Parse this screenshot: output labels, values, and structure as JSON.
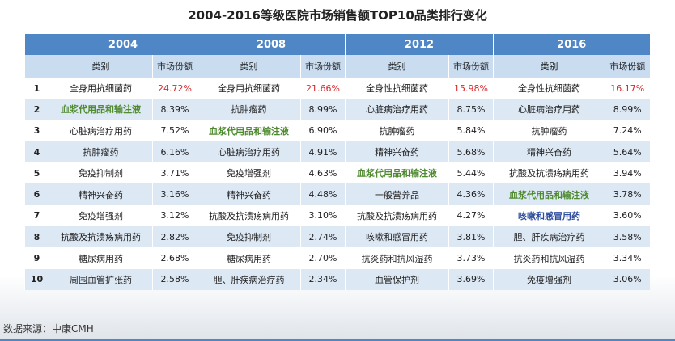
{
  "title": "2004-2016等级医院市场销售额TOP10品类排行变化",
  "source": "数据来源：中康CMH",
  "years": [
    "2004",
    "2008",
    "2012",
    "2016"
  ],
  "col_category": "类别",
  "col_share": "市场份额",
  "colors": {
    "header": "#4f86c6",
    "subheader": "#c9dcf0",
    "stripe": "#dde8f5",
    "highlight_red": "#d6262b",
    "highlight_green": "#4e8a2e",
    "highlight_blue": "#2e4d9e"
  },
  "rows": [
    {
      "rank": "1",
      "cells": [
        {
          "cat": "全身用抗细菌药",
          "share": "24.72%",
          "share_style": "red"
        },
        {
          "cat": "全身用抗细菌药",
          "share": "21.66%",
          "share_style": "red"
        },
        {
          "cat": "全身性抗细菌药",
          "share": "15.98%",
          "share_style": "red"
        },
        {
          "cat": "全身性抗细菌药",
          "share": "16.17%",
          "share_style": "red"
        }
      ]
    },
    {
      "rank": "2",
      "cells": [
        {
          "cat": "血浆代用品和输注液",
          "share": "8.39%",
          "cat_style": "green"
        },
        {
          "cat": "抗肿瘤药",
          "share": "8.99%"
        },
        {
          "cat": "心脏病治疗用药",
          "share": "8.75%"
        },
        {
          "cat": "心脏病治疗用药",
          "share": "8.99%"
        }
      ]
    },
    {
      "rank": "3",
      "cells": [
        {
          "cat": "心脏病治疗用药",
          "share": "7.52%"
        },
        {
          "cat": "血浆代用品和输注液",
          "share": "6.90%",
          "cat_style": "green"
        },
        {
          "cat": "抗肿瘤药",
          "share": "5.84%"
        },
        {
          "cat": "抗肿瘤药",
          "share": "7.24%"
        }
      ]
    },
    {
      "rank": "4",
      "cells": [
        {
          "cat": "抗肿瘤药",
          "share": "6.16%"
        },
        {
          "cat": "心脏病治疗用药",
          "share": "4.91%"
        },
        {
          "cat": "精神兴奋药",
          "share": "5.68%"
        },
        {
          "cat": "精神兴奋药",
          "share": "5.64%"
        }
      ]
    },
    {
      "rank": "5",
      "cells": [
        {
          "cat": "免疫抑制剂",
          "share": "3.71%"
        },
        {
          "cat": "免疫增强剂",
          "share": "4.63%"
        },
        {
          "cat": "血浆代用品和输注液",
          "share": "5.44%",
          "cat_style": "green"
        },
        {
          "cat": "抗酸及抗溃疡病用药",
          "share": "3.94%"
        }
      ]
    },
    {
      "rank": "6",
      "cells": [
        {
          "cat": "精神兴奋药",
          "share": "3.16%"
        },
        {
          "cat": "精神兴奋药",
          "share": "4.48%"
        },
        {
          "cat": "一般营养品",
          "share": "4.36%"
        },
        {
          "cat": "血浆代用品和输注液",
          "share": "3.78%",
          "cat_style": "green"
        }
      ]
    },
    {
      "rank": "7",
      "cells": [
        {
          "cat": "免疫增强剂",
          "share": "3.12%"
        },
        {
          "cat": "抗酸及抗溃疡病用药",
          "share": "3.10%"
        },
        {
          "cat": "抗酸及抗溃疡病用药",
          "share": "4.27%"
        },
        {
          "cat": "咳嗽和感冒用药",
          "share": "3.60%",
          "cat_style": "blue"
        }
      ]
    },
    {
      "rank": "8",
      "cells": [
        {
          "cat": "抗酸及抗溃疡病用药",
          "share": "2.82%"
        },
        {
          "cat": "免疫抑制剂",
          "share": "2.74%"
        },
        {
          "cat": "咳嗽和感冒用药",
          "share": "3.81%"
        },
        {
          "cat": "胆、肝疾病治疗药",
          "share": "3.58%"
        }
      ]
    },
    {
      "rank": "9",
      "cells": [
        {
          "cat": "糖尿病用药",
          "share": "2.68%"
        },
        {
          "cat": "糖尿病用药",
          "share": "2.70%"
        },
        {
          "cat": "抗炎药和抗风湿药",
          "share": "3.73%"
        },
        {
          "cat": "抗炎药和抗风湿药",
          "share": "3.34%"
        }
      ]
    },
    {
      "rank": "10",
      "cells": [
        {
          "cat": "周围血管扩张药",
          "share": "2.58%"
        },
        {
          "cat": "胆、肝疾病治疗药",
          "share": "2.34%"
        },
        {
          "cat": "血管保护剂",
          "share": "3.69%"
        },
        {
          "cat": "免疫增强剂",
          "share": "3.06%"
        }
      ]
    }
  ]
}
